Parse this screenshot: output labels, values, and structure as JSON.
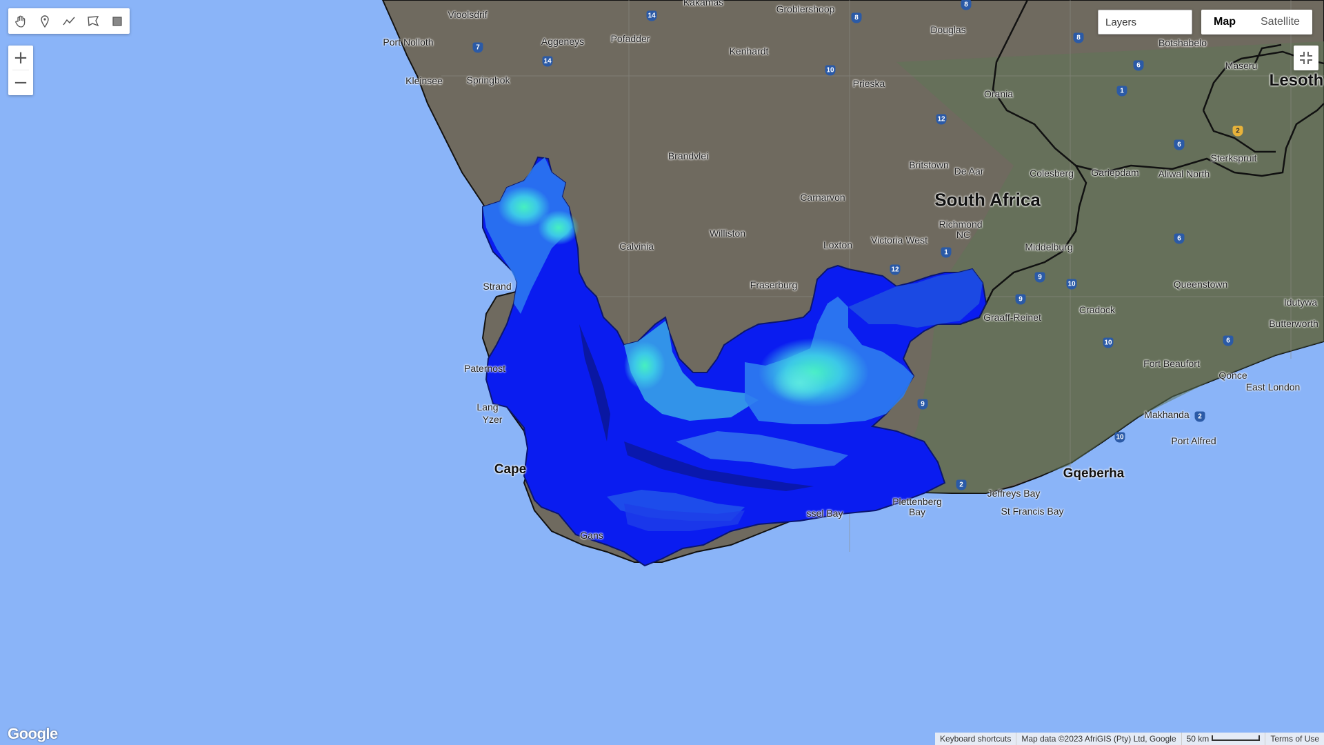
{
  "toolbar": {
    "tools": [
      {
        "name": "pan",
        "icon": "hand-icon"
      },
      {
        "name": "point",
        "icon": "marker-icon"
      },
      {
        "name": "line",
        "icon": "line-icon"
      },
      {
        "name": "polygon",
        "icon": "polygon-icon"
      },
      {
        "name": "rectangle",
        "icon": "rectangle-icon"
      }
    ]
  },
  "zoom": {
    "in_label": "+",
    "out_label": "−"
  },
  "layers": {
    "label": "Layers"
  },
  "map_type": {
    "map_label": "Map",
    "satellite_label": "Satellite",
    "selected": "Map"
  },
  "country_label": "South Africa",
  "region_label": "Lesoth",
  "places": {
    "vioolsdrif": "Vioolsdrif",
    "kakamas": "Kakamas",
    "groblershoop": "Groblershoop",
    "port_nolloth": "Port Nolloth",
    "aggeneys": "Aggeneys",
    "pofadder": "Pofadder",
    "douglas": "Douglas",
    "botshabelo": "Botshabelo",
    "maseru": "Maseru",
    "kleinsee": "Kleinsee",
    "springbok": "Springbok",
    "kenhardt": "Kenhardt",
    "prieska": "Prieska",
    "orania": "Orania",
    "brandvlei": "Brandvlei",
    "britstown": "Britstown",
    "de_aar": "De Aar",
    "colesberg": "Colesberg",
    "gariepdam": "Gariepdam",
    "aliwal_north": "Aliwal North",
    "sterkspruit": "Sterkspruit",
    "carnarvon": "Carnarvon",
    "richmond": "Richmond",
    "richmond_nc": "NC",
    "williston": "Williston",
    "calvinia": "Calvinia",
    "loxton": "Loxton",
    "victoria_west": "Victoria West",
    "middelburg": "Middelburg",
    "strand": "Strand",
    "fraserburg": "Fraserburg",
    "queenstown": "Queenstown",
    "idutywa": "Idutywa",
    "graaff_reinet": "Graaff-Reinet",
    "cradock": "Cradock",
    "butterworth": "Butterworth",
    "paternoster": "Paternost",
    "fort_beaufort": "Fort Beaufort",
    "qonce": "Qonce",
    "east_london": "East London",
    "langebaan": "Lang",
    "yzerfontein": "Yzer",
    "makhanda": "Makhanda",
    "port_alfred": "Port Alfred",
    "cape_town": "Cape",
    "gqeberha": "Gqeberha",
    "jeffreys_bay": "Jeffreys Bay",
    "plettenberg_bay": "Plettenberg",
    "plettenberg_bay2": "Bay",
    "mossel_bay": "ssel Bay",
    "st_francis_bay": "St Francis Bay",
    "gansbaai": "Gans"
  },
  "routes": [
    "14",
    "8",
    "8",
    "7",
    "14",
    "10",
    "8",
    "6",
    "1",
    "12",
    "6",
    "6",
    "1",
    "12",
    "9",
    "10",
    "9",
    "10",
    "6",
    "9",
    "2",
    "2",
    "10",
    "2",
    "6"
  ],
  "footer": {
    "google": "Google",
    "shortcuts": "Keyboard shortcuts",
    "attribution": "Map data ©2023 AfriGIS (Pty) Ltd, Google",
    "scale": "50 km",
    "terms": "Terms of Use"
  },
  "colors": {
    "ocean": "#8ab4f8",
    "land_overlay": "#6f6a5f",
    "raster_low": "#0a1cf0",
    "raster_mid": "#2e7df0",
    "raster_high": "#46f0c0"
  }
}
